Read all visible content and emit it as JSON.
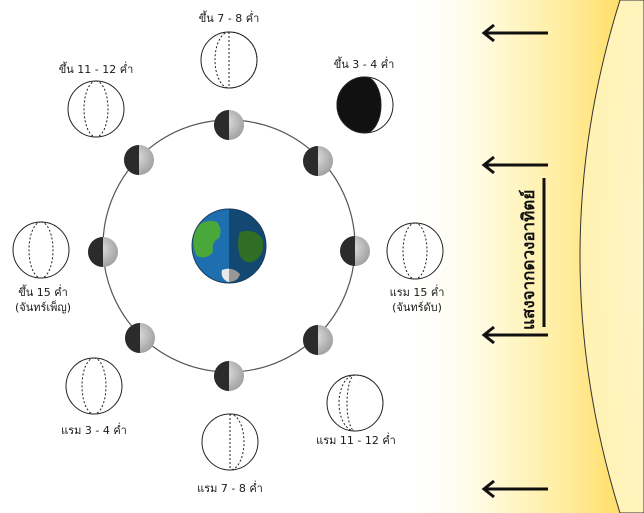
{
  "labels": {
    "first_quarter": "ขึ้น 7 - 8 ค่ำ",
    "waxing_crescent": "ขึ้น 3 - 4 ค่ำ",
    "waxing_gibbous": "ขึ้น 11 - 12 ค่ำ",
    "full_moon_line1": "ขึ้น 15 ค่ำ",
    "full_moon_line2": "(จันทร์เพ็ญ)",
    "new_moon_line1": "แรม 15 ค่ำ",
    "new_moon_line2": "(จันทร์ดับ)",
    "waning_gibbous": "แรม 3 - 4 ค่ำ",
    "waning_crescent": "แรม 11 - 12 ค่ำ",
    "last_quarter": "แรม 7 - 8 ค่ำ"
  },
  "sunlight_label": "แสงจากดวงอาทิตย์",
  "colors": {
    "sun_core": "#fff7c9",
    "sun_glow": "#ffd64a",
    "orbit": "#555555",
    "moon_dark": "#2b2b2b",
    "moon_light": "#c9c9c9",
    "ocean": "#1e6fb0",
    "land": "#4aa83a"
  },
  "icons": {
    "light_arrow": "arrow-left-icon",
    "earth": "earth-icon"
  }
}
